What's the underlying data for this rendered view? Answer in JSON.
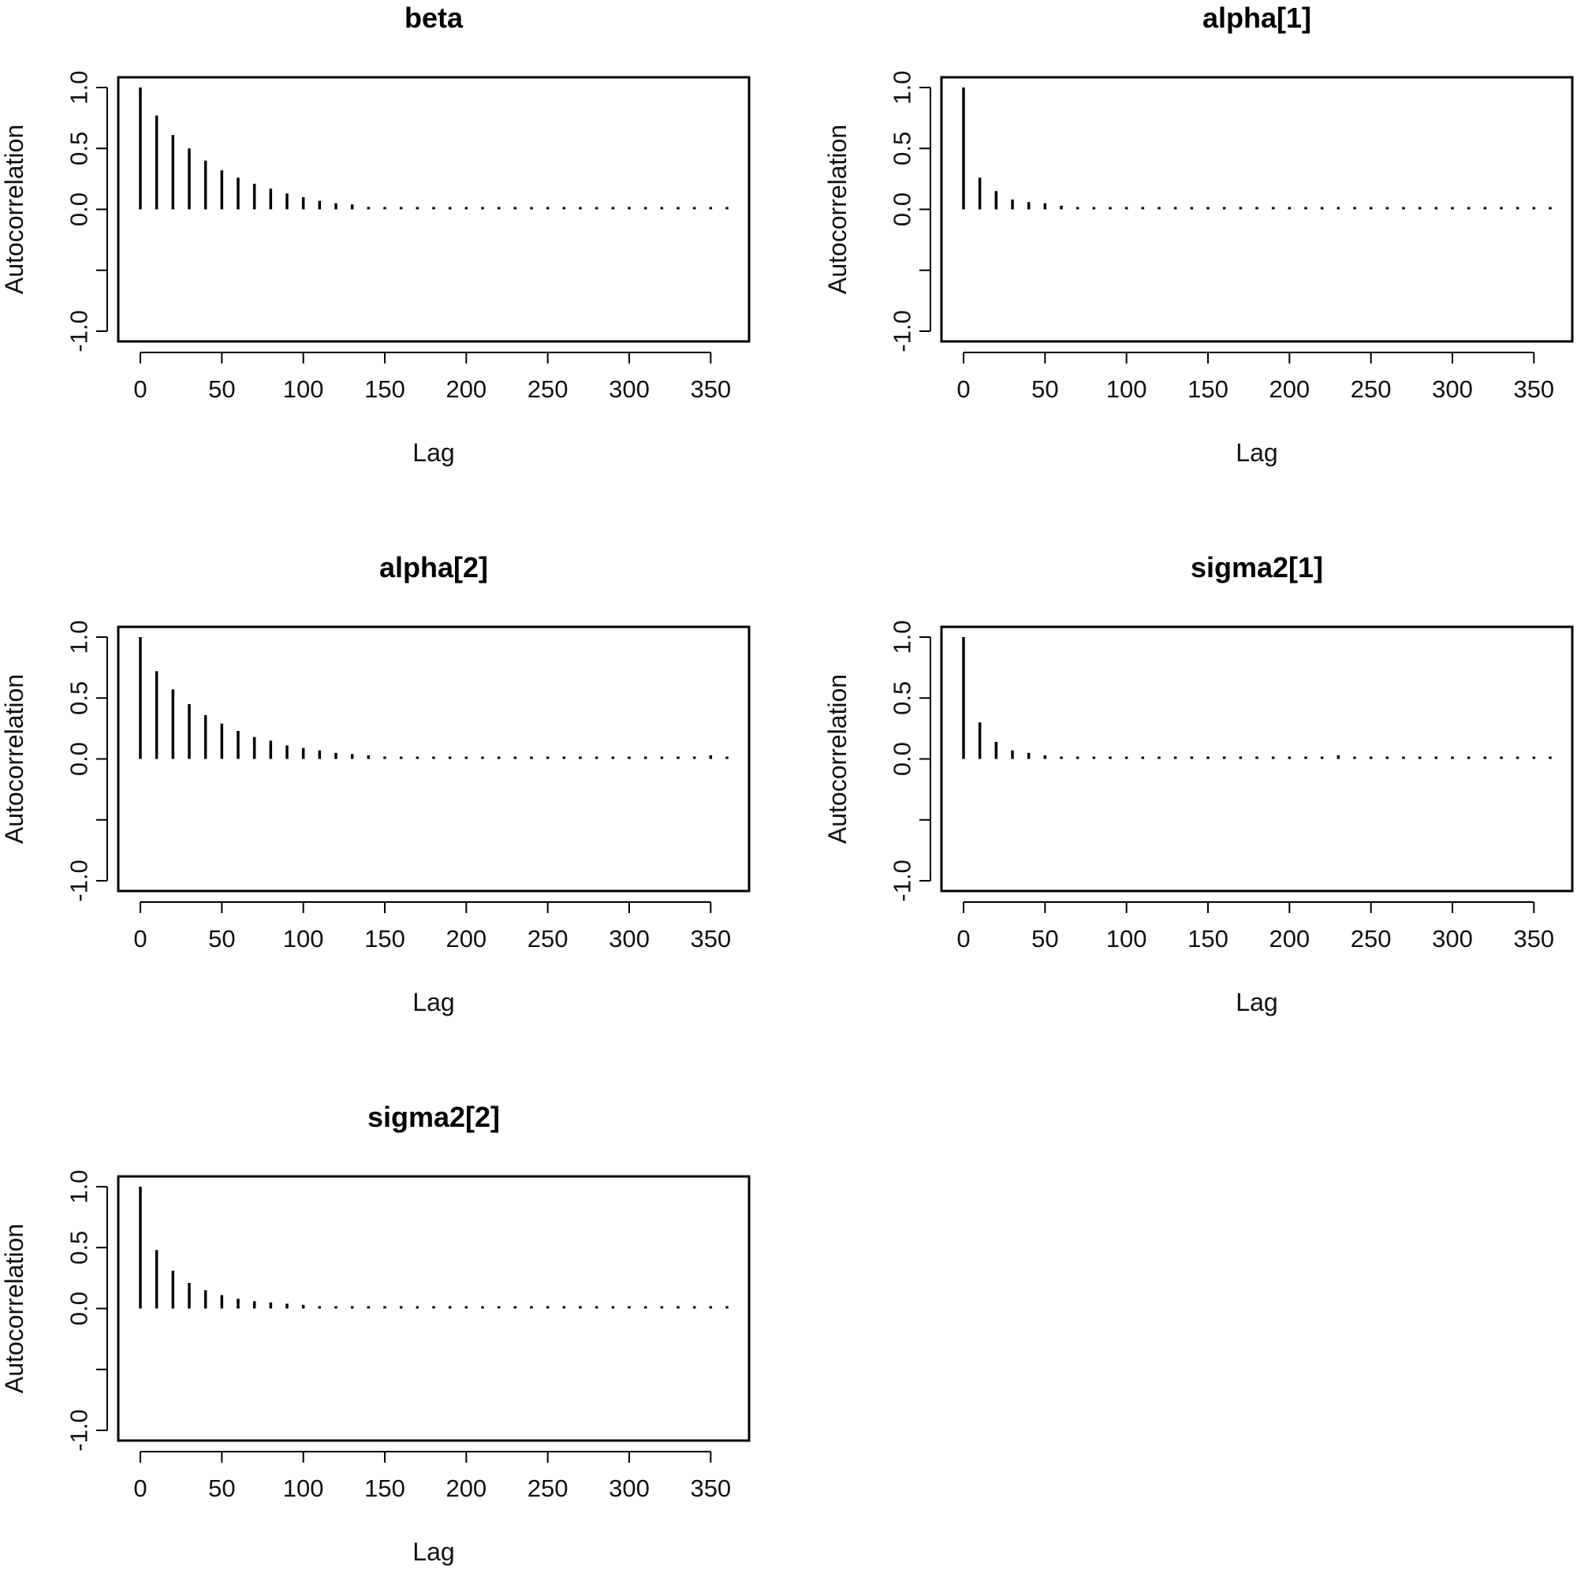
{
  "figure": {
    "layout": "3 rows x 2 columns, 5 panels",
    "background": "#ffffff",
    "ink": "#000000"
  },
  "chart_data": [
    {
      "type": "bar",
      "title": "beta",
      "xlabel": "Lag",
      "ylabel": "Autocorrelation",
      "xlim": [
        0,
        360
      ],
      "ylim": [
        -1,
        1
      ],
      "xticks": [
        "0",
        "50",
        "100",
        "150",
        "200",
        "250",
        "300",
        "350"
      ],
      "yticks": [
        "-1.0",
        "",
        "0.0",
        "0.5",
        "1.0"
      ],
      "lags": [
        0,
        10,
        20,
        30,
        40,
        50,
        60,
        70,
        80,
        90,
        100,
        110,
        120,
        130,
        140,
        150,
        160,
        170,
        180,
        190,
        200,
        210,
        220,
        230,
        240,
        250,
        260,
        270,
        280,
        290,
        300,
        310,
        320,
        330,
        340,
        350,
        360
      ],
      "values": [
        1.0,
        0.77,
        0.61,
        0.5,
        0.4,
        0.32,
        0.26,
        0.21,
        0.17,
        0.13,
        0.1,
        0.07,
        0.05,
        0.04,
        0.02,
        0.01,
        0.005,
        0.005,
        0.005,
        0.005,
        0.005,
        0.005,
        0.005,
        0.005,
        0.005,
        0.005,
        0.005,
        0.005,
        0.005,
        0.005,
        0.01,
        0.01,
        0.01,
        0.01,
        0.01,
        0.01,
        0.01
      ]
    },
    {
      "type": "bar",
      "title": "alpha[1]",
      "xlabel": "Lag",
      "ylabel": "Autocorrelation",
      "xlim": [
        0,
        360
      ],
      "ylim": [
        -1,
        1
      ],
      "xticks": [
        "0",
        "50",
        "100",
        "150",
        "200",
        "250",
        "300",
        "350"
      ],
      "yticks": [
        "-1.0",
        "",
        "0.0",
        "0.5",
        "1.0"
      ],
      "lags": [
        0,
        10,
        20,
        30,
        40,
        50,
        60,
        70,
        80,
        90,
        100,
        110,
        120,
        130,
        140,
        150,
        160,
        170,
        180,
        190,
        200,
        210,
        220,
        230,
        240,
        250,
        260,
        270,
        280,
        290,
        300,
        310,
        320,
        330,
        340,
        350,
        360
      ],
      "values": [
        1.0,
        0.26,
        0.15,
        0.08,
        0.06,
        0.05,
        0.03,
        0.01,
        0.005,
        0.005,
        0.01,
        0.005,
        0.005,
        0.005,
        0.01,
        0.005,
        0.005,
        0.01,
        0.005,
        0.005,
        0.01,
        0.01,
        0.01,
        0.01,
        0.01,
        0.005,
        0.01,
        0.01,
        0.01,
        0.005,
        0.01,
        0.005,
        0.005,
        0.005,
        -0.01,
        0.005,
        0.01
      ]
    },
    {
      "type": "bar",
      "title": "alpha[2]",
      "xlabel": "Lag",
      "ylabel": "Autocorrelation",
      "xlim": [
        0,
        360
      ],
      "ylim": [
        -1,
        1
      ],
      "xticks": [
        "0",
        "50",
        "100",
        "150",
        "200",
        "250",
        "300",
        "350"
      ],
      "yticks": [
        "-1.0",
        "",
        "0.0",
        "0.5",
        "1.0"
      ],
      "lags": [
        0,
        10,
        20,
        30,
        40,
        50,
        60,
        70,
        80,
        90,
        100,
        110,
        120,
        130,
        140,
        150,
        160,
        170,
        180,
        190,
        200,
        210,
        220,
        230,
        240,
        250,
        260,
        270,
        280,
        290,
        300,
        310,
        320,
        330,
        340,
        350,
        360
      ],
      "values": [
        1.0,
        0.72,
        0.57,
        0.45,
        0.36,
        0.29,
        0.23,
        0.18,
        0.15,
        0.11,
        0.09,
        0.07,
        0.05,
        0.04,
        0.03,
        0.01,
        0.005,
        0.005,
        0.005,
        0.005,
        0.005,
        0.005,
        0.005,
        0.005,
        0.01,
        0.005,
        0.005,
        0.005,
        0.005,
        0.005,
        0.01,
        0.01,
        0.01,
        0.01,
        0.02,
        0.03,
        0.01
      ]
    },
    {
      "type": "bar",
      "title": "sigma2[1]",
      "xlabel": "Lag",
      "ylabel": "Autocorrelation",
      "xlim": [
        0,
        360
      ],
      "ylim": [
        -1,
        1
      ],
      "xticks": [
        "0",
        "50",
        "100",
        "150",
        "200",
        "250",
        "300",
        "350"
      ],
      "yticks": [
        "-1.0",
        "",
        "0.0",
        "0.5",
        "1.0"
      ],
      "lags": [
        0,
        10,
        20,
        30,
        40,
        50,
        60,
        70,
        80,
        90,
        100,
        110,
        120,
        130,
        140,
        150,
        160,
        170,
        180,
        190,
        200,
        210,
        220,
        230,
        240,
        250,
        260,
        270,
        280,
        290,
        300,
        310,
        320,
        330,
        340,
        350,
        360
      ],
      "values": [
        1.0,
        0.3,
        0.14,
        0.07,
        0.05,
        0.03,
        0.01,
        0.01,
        0.005,
        0.01,
        0.01,
        0.005,
        0.01,
        0.005,
        0.005,
        0.005,
        0.005,
        0.01,
        0.005,
        0.005,
        0.005,
        0.005,
        0.005,
        0.03,
        0.01,
        0.01,
        0.01,
        0.01,
        0.005,
        0.01,
        0.01,
        0.005,
        0.005,
        0.005,
        0.005,
        0.005,
        -0.01
      ]
    },
    {
      "type": "bar",
      "title": "sigma2[2]",
      "xlabel": "Lag",
      "ylabel": "Autocorrelation",
      "xlim": [
        0,
        360
      ],
      "ylim": [
        -1,
        1
      ],
      "xticks": [
        "0",
        "50",
        "100",
        "150",
        "200",
        "250",
        "300",
        "350"
      ],
      "yticks": [
        "-1.0",
        "",
        "0.0",
        "0.5",
        "1.0"
      ],
      "lags": [
        0,
        10,
        20,
        30,
        40,
        50,
        60,
        70,
        80,
        90,
        100,
        110,
        120,
        130,
        140,
        150,
        160,
        170,
        180,
        190,
        200,
        210,
        220,
        230,
        240,
        250,
        260,
        270,
        280,
        290,
        300,
        310,
        320,
        330,
        340,
        350,
        360
      ],
      "values": [
        1.0,
        0.48,
        0.31,
        0.21,
        0.15,
        0.11,
        0.08,
        0.06,
        0.05,
        0.04,
        0.03,
        0.02,
        0.01,
        0.01,
        0.01,
        0.01,
        0.01,
        0.01,
        0.005,
        0.005,
        0.005,
        0.005,
        0.01,
        0.01,
        0.01,
        0.005,
        0.005,
        0.005,
        0.005,
        0.005,
        0.005,
        0.005,
        0.01,
        0.01,
        0.01,
        0.005,
        0.005
      ]
    }
  ]
}
